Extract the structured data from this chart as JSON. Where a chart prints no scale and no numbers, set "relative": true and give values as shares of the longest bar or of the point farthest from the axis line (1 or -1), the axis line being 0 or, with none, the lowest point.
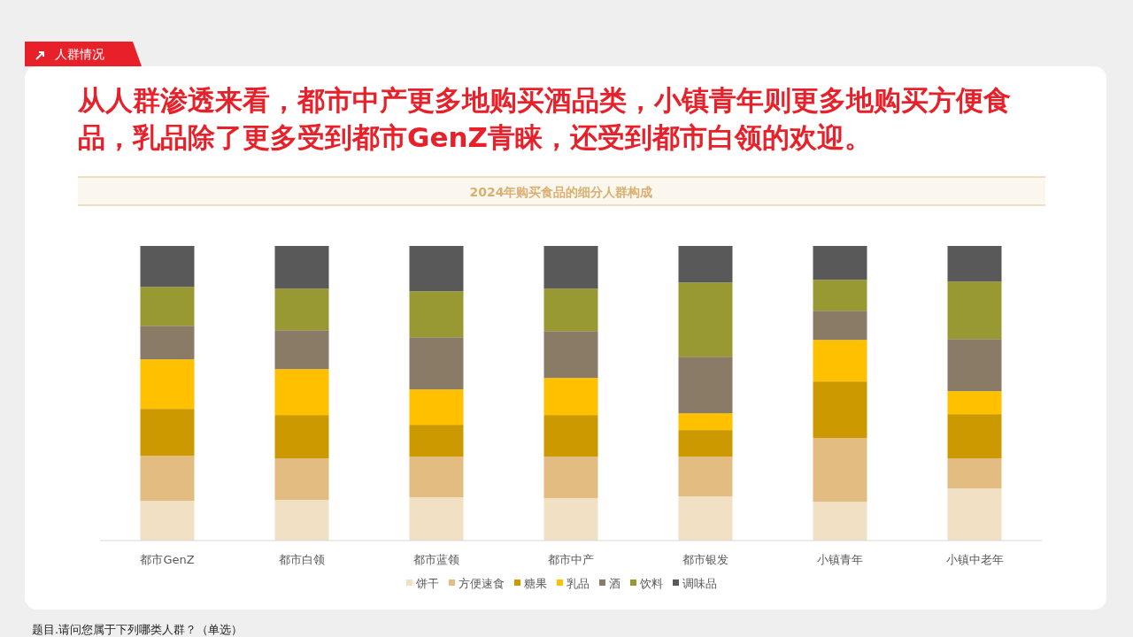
{
  "chart_data": {
    "type": "bar",
    "title": "从人群渗透来看，都市中产更多地购买酒品类，小镇青年则更多地购买方便食品，乳品除了更多受到都市GenZ青睐，还受到都市白领的欢迎。",
    "subtitle": "2024年购买食品的细分人群构成",
    "annotations": [
      "人群情况",
      "题目.请问您属于下列哪类人群？（单选）"
    ],
    "categories": [
      "都市GenZ",
      "都市白领",
      "都市蓝领",
      "都市中产",
      "都市银发",
      "小镇青年",
      "小镇中老年"
    ],
    "stacked": true,
    "relative": true,
    "legend": "bottom",
    "series": [
      {
        "name": "饼干",
        "color": "#f2e0c4",
        "values": [
          0.135,
          0.138,
          0.147,
          0.144,
          0.15,
          0.132,
          0.177
        ]
      },
      {
        "name": "方便速食",
        "color": "#e2bc80",
        "values": [
          0.153,
          0.141,
          0.138,
          0.141,
          0.135,
          0.216,
          0.102
        ]
      },
      {
        "name": "糖果",
        "color": "#cc9900",
        "values": [
          0.159,
          0.147,
          0.108,
          0.141,
          0.09,
          0.192,
          0.15
        ]
      },
      {
        "name": "乳品",
        "color": "#ffc000",
        "values": [
          0.168,
          0.156,
          0.12,
          0.126,
          0.057,
          0.141,
          0.078
        ]
      },
      {
        "name": "酒",
        "color": "#8a7b67",
        "values": [
          0.114,
          0.132,
          0.177,
          0.159,
          0.192,
          0.099,
          0.177
        ]
      },
      {
        "name": "饮料",
        "color": "#999933",
        "values": [
          0.132,
          0.141,
          0.156,
          0.144,
          0.252,
          0.105,
          0.195
        ]
      },
      {
        "name": "调味品",
        "color": "#595959",
        "values": [
          0.139,
          0.145,
          0.154,
          0.145,
          0.124,
          0.115,
          0.121
        ]
      }
    ]
  }
}
